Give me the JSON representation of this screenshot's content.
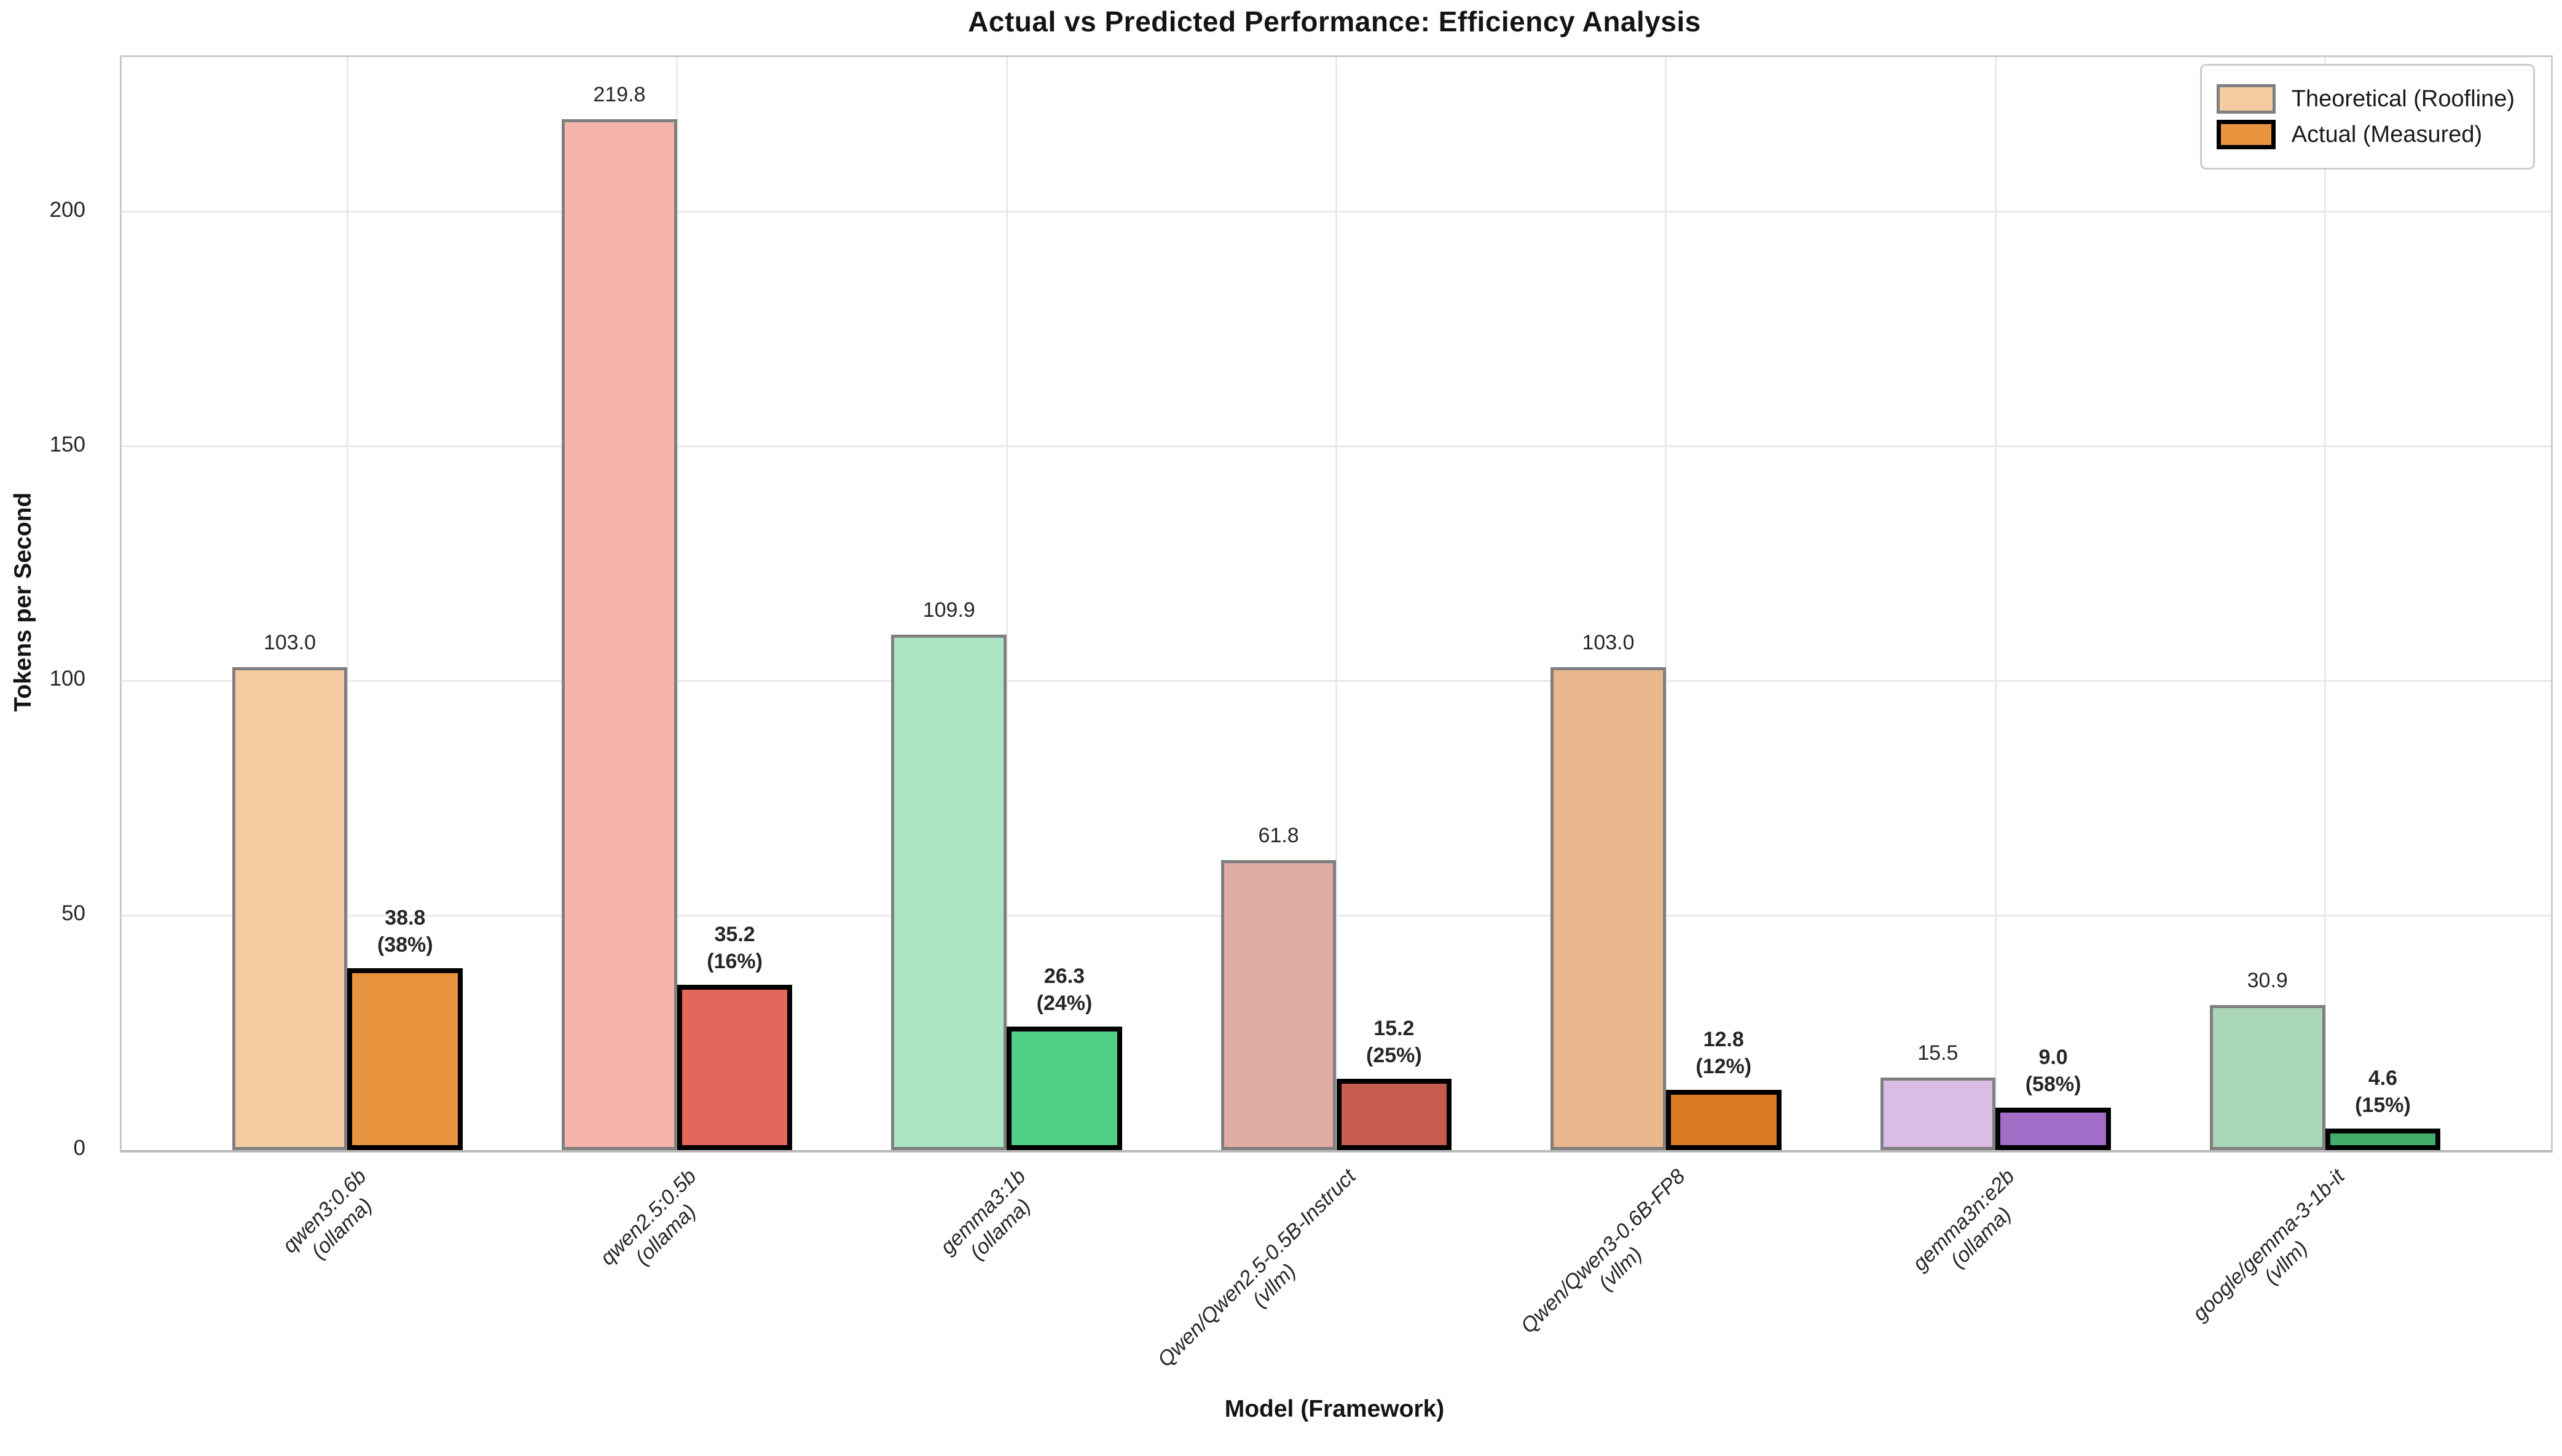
{
  "title": "Actual vs Predicted Performance: Efficiency Analysis",
  "axes": {
    "xlabel": "Model (Framework)",
    "ylabel": "Tokens per Second"
  },
  "legend": {
    "items": [
      {
        "label": "Theoretical (Roofline)",
        "fill": "#F4CAA1",
        "edge": "#7f7f7f"
      },
      {
        "label": "Actual (Measured)",
        "fill": "#E8943E",
        "edge": "#000000"
      }
    ]
  },
  "chart_data": {
    "type": "bar",
    "title": "Actual vs Predicted Performance: Efficiency Analysis",
    "xlabel": "Model (Framework)",
    "ylabel": "Tokens per Second",
    "ylim": [
      0,
      233
    ],
    "yticks": [
      0,
      50,
      100,
      150,
      200
    ],
    "ytick_labels": [
      "0",
      "50",
      "100",
      "150",
      "200"
    ],
    "grid": true,
    "legend_position": "upper right",
    "categories": [
      "qwen3:0.6b (ollama)",
      "qwen2.5:0.5b (ollama)",
      "gemma3:1b (ollama)",
      "Qwen/Qwen2.5-0.5B-Instruct (vllm)",
      "Qwen/Qwen3-0.6B-FP8 (vllm)",
      "gemma3n:e2b (ollama)",
      "google/gemma-3-1b-it (vllm)"
    ],
    "series": [
      {
        "name": "Theoretical (Roofline)",
        "values": [
          103.0,
          219.8,
          109.9,
          61.8,
          103.0,
          15.5,
          30.9
        ]
      },
      {
        "name": "Actual (Measured)",
        "values": [
          38.8,
          35.2,
          26.3,
          15.2,
          12.8,
          9.0,
          4.6
        ]
      }
    ],
    "efficiency_percent": [
      38,
      16,
      24,
      25,
      12,
      58,
      15
    ],
    "models": [
      {
        "model": "qwen3:0.6b",
        "framework": "(ollama)",
        "theoretical": 103.0,
        "actual": 38.8,
        "theo_label": "103.0",
        "act_label": "38.8",
        "pct_label": "(38%)",
        "theo_color": "#F4CAA1",
        "act_color": "#E8943E"
      },
      {
        "model": "qwen2.5:0.5b",
        "framework": "(ollama)",
        "theoretical": 219.8,
        "actual": 35.2,
        "theo_label": "219.8",
        "act_label": "35.2",
        "pct_label": "(16%)",
        "theo_color": "#F5B4AC",
        "act_color": "#E4675C"
      },
      {
        "model": "gemma3:1b",
        "framework": "(ollama)",
        "theoretical": 109.9,
        "actual": 26.3,
        "theo_label": "109.9",
        "act_label": "26.3",
        "pct_label": "(24%)",
        "theo_color": "#AAE6C3",
        "act_color": "#50CF86"
      },
      {
        "model": "Qwen/Qwen2.5-0.5B-Instruct",
        "framework": "(vllm)",
        "theoretical": 61.8,
        "actual": 15.2,
        "theo_label": "61.8",
        "act_label": "15.2",
        "pct_label": "(25%)",
        "theo_color": "#E0AAA5",
        "act_color": "#C65B50"
      },
      {
        "model": "Qwen/Qwen3-0.6B-FP8",
        "framework": "(vllm)",
        "theoretical": 103.0,
        "actual": 12.8,
        "theo_label": "103.0",
        "act_label": "12.8",
        "pct_label": "(12%)",
        "theo_color": "#EAB78C",
        "act_color": "#D97B22"
      },
      {
        "model": "gemma3n:e2b",
        "framework": "(ollama)",
        "theoretical": 15.5,
        "actual": 9.0,
        "theo_label": "15.5",
        "act_label": "9.0",
        "pct_label": "(58%)",
        "theo_color": "#DABDE4",
        "act_color": "#A26DC6"
      },
      {
        "model": "google/gemma-3-1b-it",
        "framework": "(vllm)",
        "theoretical": 30.9,
        "actual": 4.6,
        "theo_label": "30.9",
        "act_label": "4.6",
        "pct_label": "(15%)",
        "theo_color": "#AAD7B8",
        "act_color": "#42AC6A"
      }
    ]
  }
}
